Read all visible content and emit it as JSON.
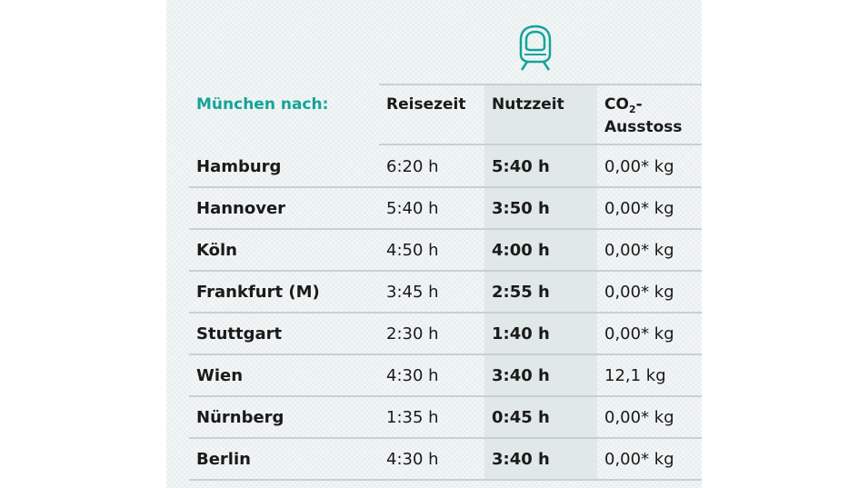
{
  "icon": {
    "name": "train-icon",
    "color": "#14a39a"
  },
  "header": {
    "origin_label": "München nach:",
    "col_travel": "Reisezeit",
    "col_use": "Nutzzeit",
    "col_co2_prefix": "CO",
    "col_co2_sub": "2",
    "col_co2_suffix": "-",
    "col_co2_line2": "Ausstoss"
  },
  "rows": [
    {
      "city": "Hamburg",
      "travel": "6:20 h",
      "use": "5:40 h",
      "co2": "0,00* kg"
    },
    {
      "city": "Hannover",
      "travel": "5:40 h",
      "use": "3:50 h",
      "co2": "0,00* kg"
    },
    {
      "city": "Köln",
      "travel": "4:50 h",
      "use": "4:00 h",
      "co2": "0,00* kg"
    },
    {
      "city": "Frankfurt (M)",
      "travel": "3:45 h",
      "use": "2:55 h",
      "co2": "0,00* kg"
    },
    {
      "city": "Stuttgart",
      "travel": "2:30 h",
      "use": "1:40 h",
      "co2": "0,00* kg"
    },
    {
      "city": "Wien",
      "travel": "4:30 h",
      "use": "3:40 h",
      "co2": "12,1 kg"
    },
    {
      "city": "Nürnberg",
      "travel": "1:35 h",
      "use": "0:45 h",
      "co2": "0,00* kg"
    },
    {
      "city": "Berlin",
      "travel": "4:30 h",
      "use": "3:40 h",
      "co2": "0,00* kg"
    }
  ]
}
